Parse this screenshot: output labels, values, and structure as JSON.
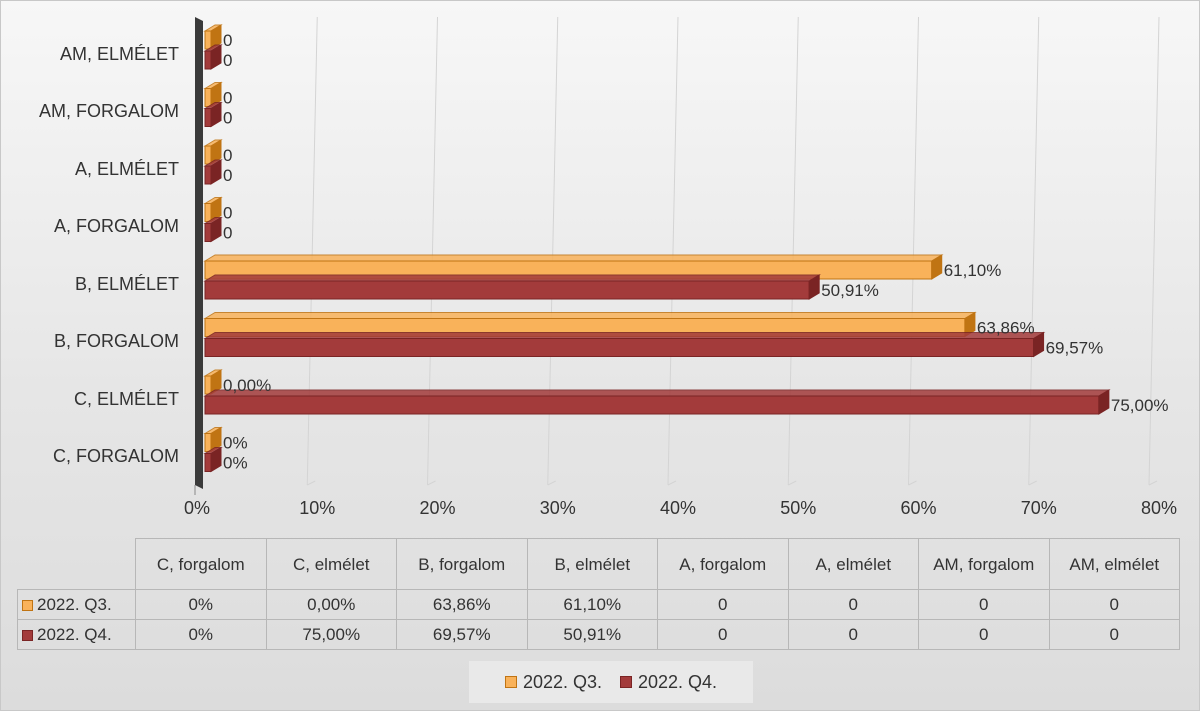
{
  "chart_data": {
    "type": "bar",
    "orientation": "horizontal",
    "categories": [
      "C, forgalom",
      "C, elmélet",
      "B, forgalom",
      "B, elmélet",
      "A, forgalom",
      "A, elmélet",
      "AM, forgalom",
      "AM, elmélet"
    ],
    "axis_categories": [
      "C, FORGALOM",
      "C, ELMÉLET",
      "B, FORGALOM",
      "B, ELMÉLET",
      "A, FORGALOM",
      "A, ELMÉLET",
      "AM, FORGALOM",
      "AM, ELMÉLET"
    ],
    "table_header": [
      "C, forgalom",
      "C, elmélet",
      "B, forgalom",
      "B, elmélet",
      "A, forgalom",
      "A, elmélet",
      "AM, forgalom",
      "AM, elmélet"
    ],
    "series": [
      {
        "name": "2022. Q3.",
        "color": "#F9B25A",
        "edge": "#C07413",
        "values": [
          0,
          0,
          63.86,
          61.1,
          0,
          0,
          0,
          0
        ],
        "labels": [
          "0%",
          "0,00%",
          "63,86%",
          "61,10%",
          "0",
          "0",
          "0",
          "0"
        ]
      },
      {
        "name": "2022. Q4.",
        "color": "#A33B3B",
        "edge": "#7A2424",
        "values": [
          0,
          75.0,
          69.57,
          50.91,
          0,
          0,
          0,
          0
        ],
        "labels": [
          "0%",
          "75,00%",
          "69,57%",
          "50,91%",
          "0",
          "0",
          "0",
          "0"
        ]
      }
    ],
    "xlim": [
      0,
      80
    ],
    "x_ticks": [
      "0%",
      "10%",
      "20%",
      "30%",
      "40%",
      "50%",
      "60%",
      "70%",
      "80%"
    ],
    "grid": true,
    "legend_position": "bottom",
    "data_table": true,
    "title": "",
    "xlabel": "",
    "ylabel": ""
  }
}
